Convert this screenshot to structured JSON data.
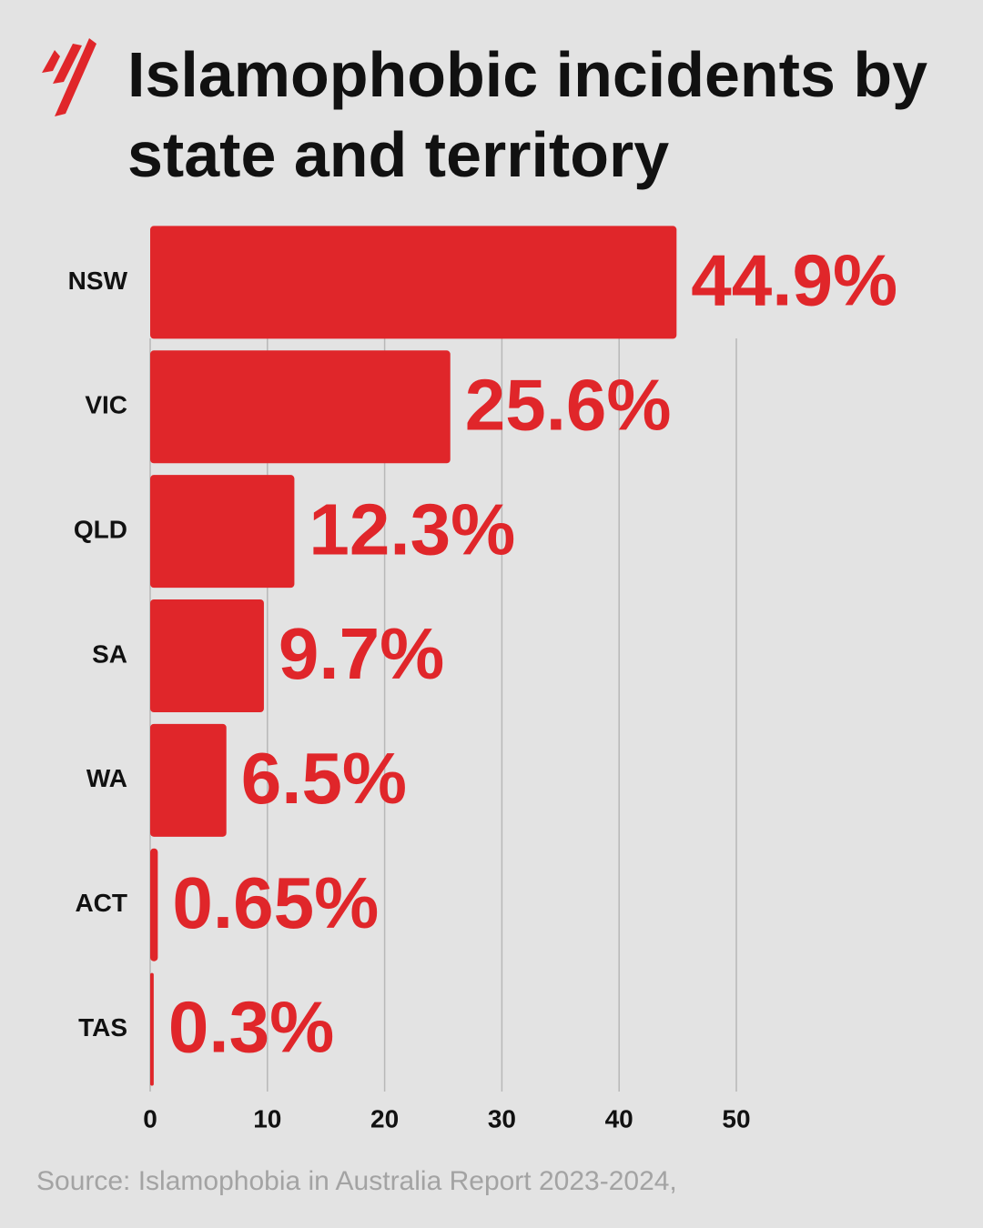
{
  "chart_data": {
    "type": "hbar",
    "title": "Islamophobic incidents by state and territory",
    "categories": [
      "NSW",
      "VIC",
      "QLD",
      "SA",
      "WA",
      "ACT",
      "TAS"
    ],
    "values": [
      44.9,
      25.6,
      12.3,
      9.7,
      6.5,
      0.65,
      0.3
    ],
    "value_labels": [
      "44.9%",
      "25.6%",
      "12.3%",
      "9.7%",
      "6.5%",
      "0.65%",
      "0.3%"
    ],
    "color": "#e0262a",
    "xlim": [
      0,
      50
    ],
    "xticks": [
      0,
      10,
      20,
      30,
      40,
      50
    ],
    "grid": true,
    "source": "Source: Islamophobia in Australia Report 2023-2024,"
  }
}
